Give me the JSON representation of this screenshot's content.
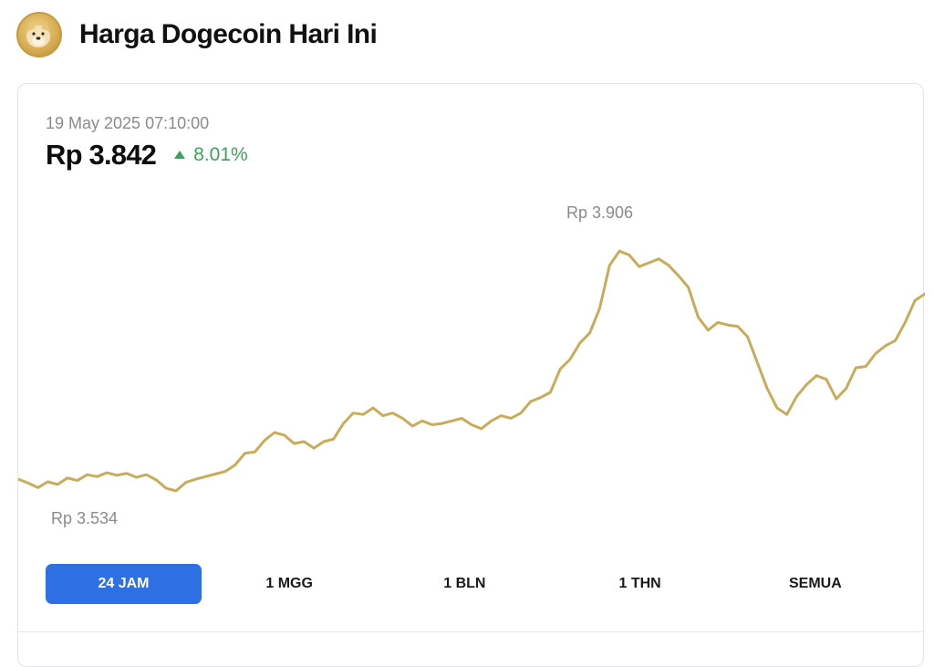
{
  "header": {
    "title": "Harga Dogecoin Hari Ini",
    "logo_icon": "dogecoin-logo"
  },
  "price_panel": {
    "timestamp": "19 May 2025 07:10:00",
    "price": "Rp 3.842",
    "change": "8.01%",
    "change_direction": "up",
    "change_color": "#3aa45a"
  },
  "chart_labels": {
    "high": "Rp 3.906",
    "low": "Rp 3.534"
  },
  "range_tabs": [
    {
      "label": "24 JAM",
      "active": true
    },
    {
      "label": "1 MGG",
      "active": false
    },
    {
      "label": "1 BLN",
      "active": false
    },
    {
      "label": "1 THN",
      "active": false
    },
    {
      "label": "SEMUA",
      "active": false
    }
  ],
  "colors": {
    "line": "#c9ac5a",
    "active_tab": "#2f6fe4"
  },
  "chart_data": {
    "type": "line",
    "title": "",
    "xlabel": "",
    "ylabel": "",
    "x_span": "24 JAM",
    "ylim": [
      3470,
      3960
    ],
    "high": 3906,
    "low": 3534,
    "last": 3842,
    "series": [
      {
        "values": [
          3550,
          3544,
          3537,
          3546,
          3542,
          3552,
          3548,
          3557,
          3554,
          3560,
          3556,
          3559,
          3553,
          3557,
          3549,
          3536,
          3532,
          3545,
          3550,
          3554,
          3558,
          3562,
          3572,
          3590,
          3592,
          3610,
          3622,
          3618,
          3605,
          3608,
          3598,
          3608,
          3612,
          3636,
          3652,
          3650,
          3660,
          3648,
          3652,
          3644,
          3632,
          3640,
          3634,
          3636,
          3640,
          3644,
          3634,
          3628,
          3640,
          3648,
          3644,
          3652,
          3670,
          3676,
          3684,
          3720,
          3735,
          3760,
          3776,
          3814,
          3880,
          3902,
          3896,
          3878,
          3884,
          3890,
          3880,
          3864,
          3846,
          3800,
          3780,
          3792,
          3788,
          3786,
          3770,
          3730,
          3690,
          3660,
          3650,
          3678,
          3696,
          3710,
          3704,
          3674,
          3690,
          3722,
          3724,
          3744,
          3756,
          3764,
          3792,
          3826,
          3836
        ]
      }
    ]
  }
}
